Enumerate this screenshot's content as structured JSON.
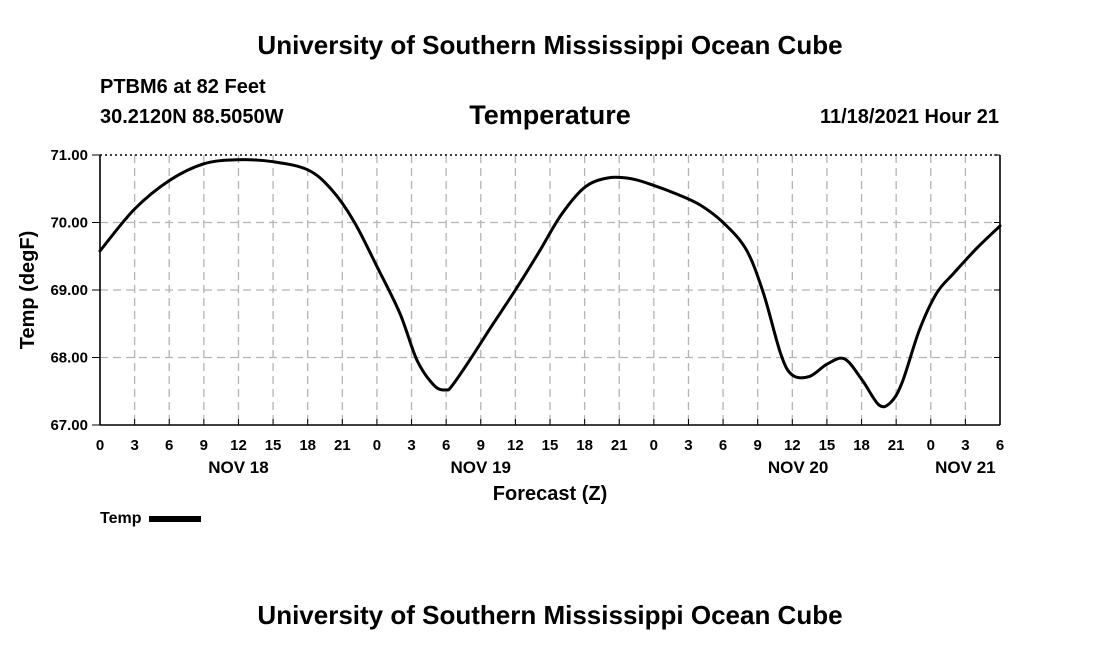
{
  "header": {
    "title": "University of Southern Mississippi Ocean Cube",
    "station": "PTBM6 at 82 Feet",
    "coordinates": "30.2120N  88.5050W",
    "chart_title": "Temperature",
    "datetime": "11/18/2021 Hour 21"
  },
  "footer": {
    "title": "University of Southern Mississippi Ocean Cube"
  },
  "legend": {
    "label": "Temp"
  },
  "colors": {
    "line": "#000000",
    "grid": "#b4b4b4"
  },
  "chart_data": {
    "type": "line",
    "title": "Temperature",
    "xlabel": "Forecast (Z)",
    "ylabel": "Temp (degF)",
    "ylim": [
      67.0,
      71.0
    ],
    "xlim_hours": [
      0,
      78
    ],
    "grid": true,
    "y_ticks": [
      "67.00",
      "68.00",
      "69.00",
      "70.00",
      "71.00"
    ],
    "x_ticks": [
      "0",
      "3",
      "6",
      "9",
      "12",
      "15",
      "18",
      "21",
      "0",
      "3",
      "6",
      "9",
      "12",
      "15",
      "18",
      "21",
      "0",
      "3",
      "6",
      "9",
      "12",
      "15",
      "18",
      "21",
      "0",
      "3",
      "6"
    ],
    "day_labels": [
      {
        "label": "NOV 18",
        "hour": 12
      },
      {
        "label": "NOV 19",
        "hour": 33
      },
      {
        "label": "NOV 20",
        "hour": 60.5
      },
      {
        "label": "NOV 21",
        "hour": 75
      }
    ],
    "series": [
      {
        "name": "Temp",
        "x": [
          0,
          3,
          6,
          9,
          12,
          15,
          18,
          20,
          22,
          24,
          26,
          27.5,
          29,
          30,
          30.5,
          32,
          34,
          36,
          38,
          40,
          42,
          44,
          46,
          48,
          50,
          52,
          54,
          56,
          57.5,
          59,
          60,
          61.5,
          63,
          64.5,
          66,
          67.5,
          68.5,
          69.5,
          71,
          72.5,
          74,
          76,
          78
        ],
        "values": [
          69.58,
          70.2,
          70.62,
          70.87,
          70.93,
          70.9,
          70.78,
          70.5,
          70.02,
          69.35,
          68.65,
          67.95,
          67.58,
          67.52,
          67.58,
          67.95,
          68.48,
          69.0,
          69.55,
          70.12,
          70.52,
          70.66,
          70.65,
          70.55,
          70.42,
          70.26,
          70.0,
          69.6,
          68.95,
          68.05,
          67.74,
          67.72,
          67.9,
          67.98,
          67.68,
          67.3,
          67.33,
          67.62,
          68.4,
          68.95,
          69.25,
          69.62,
          69.95
        ]
      }
    ]
  }
}
